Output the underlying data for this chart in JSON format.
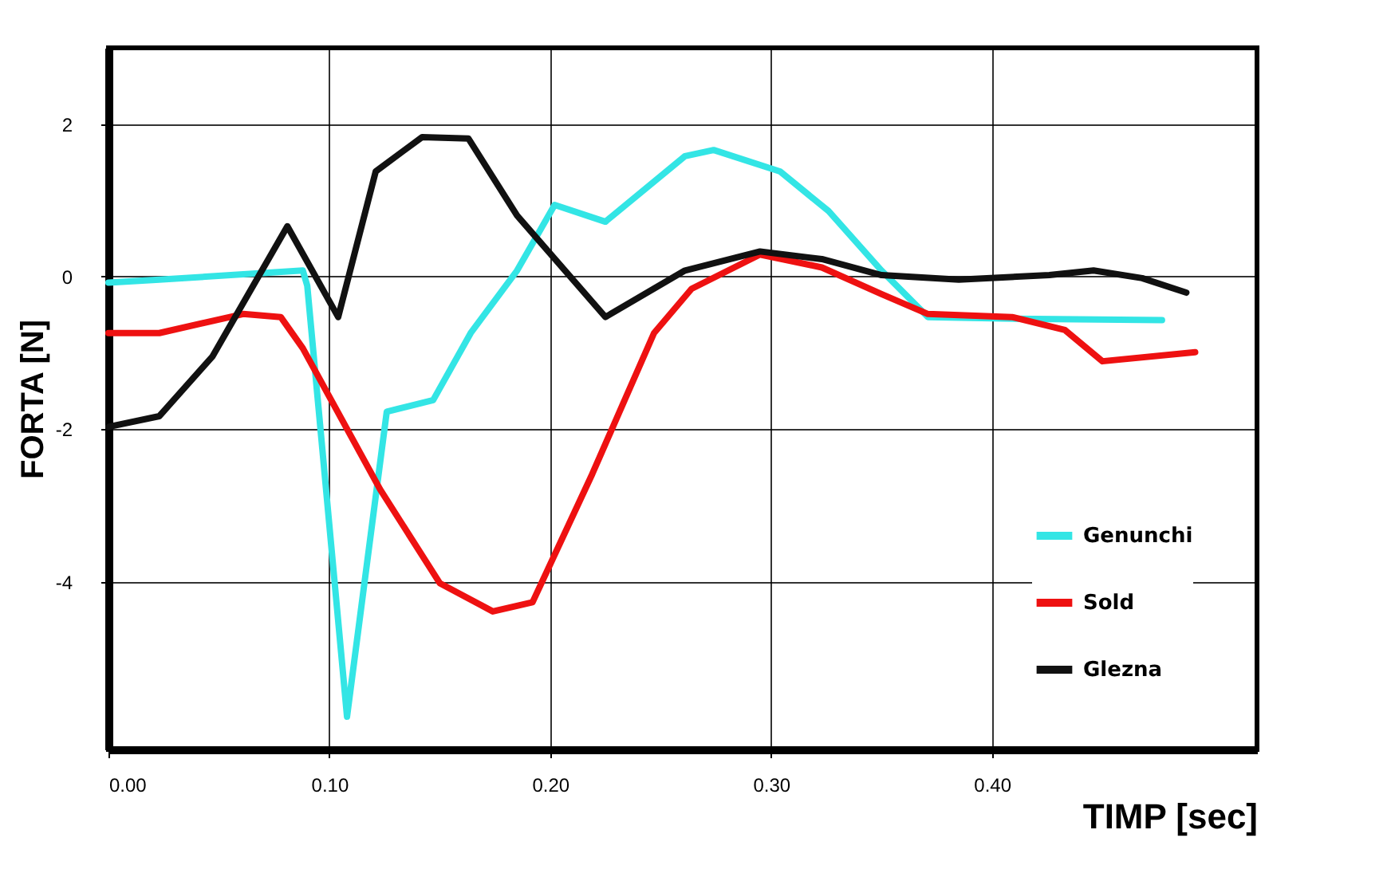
{
  "chart_data": {
    "type": "line",
    "xlabel": "TIMP [sec]",
    "ylabel": "FORTA [N]",
    "xlim": [
      0,
      0.52
    ],
    "ylim": [
      -6.2,
      3
    ],
    "xticks": [
      {
        "value": 0,
        "label": "0.00"
      },
      {
        "value": 0.1,
        "label": "0.10"
      },
      {
        "value": 0.2,
        "label": "0.20"
      },
      {
        "value": 0.3,
        "label": "0.30"
      },
      {
        "value": 0.4,
        "label": "0.40"
      }
    ],
    "yticks": [
      -4,
      -2,
      0,
      2
    ],
    "grid": true,
    "legend": "bottom right",
    "marker": "none",
    "line_style": "solid",
    "series": [
      {
        "name": "Genunchi",
        "color": "#33e5e5",
        "x": [
          0,
          0.023,
          0.088,
          0.09,
          0.108,
          0.126,
          0.147,
          0.164,
          0.185,
          0.202,
          0.225,
          0.261,
          0.274,
          0.304,
          0.326,
          0.35,
          0.371,
          0.405,
          0.477
        ],
        "values": [
          -0.08,
          -0.04,
          0.08,
          -0.12,
          -5.77,
          -1.77,
          -1.62,
          -0.74,
          0.08,
          0.94,
          0.72,
          1.58,
          1.66,
          1.38,
          0.86,
          0.08,
          -0.53,
          -0.55,
          -0.57
        ]
      },
      {
        "name": "Sold",
        "color": "#ee1111",
        "x": [
          0,
          0.023,
          0.061,
          0.078,
          0.088,
          0.123,
          0.15,
          0.174,
          0.192,
          0.219,
          0.247,
          0.264,
          0.295,
          0.323,
          0.35,
          0.371,
          0.409,
          0.433,
          0.45,
          0.492
        ],
        "values": [
          -0.74,
          -0.74,
          -0.49,
          -0.53,
          -0.94,
          -2.79,
          -4.02,
          -4.39,
          -4.27,
          -2.59,
          -0.74,
          -0.16,
          0.29,
          0.12,
          -0.23,
          -0.49,
          -0.53,
          -0.7,
          -1.11,
          -0.99
        ]
      },
      {
        "name": "Glezna",
        "color": "#111111",
        "x": [
          0,
          0.023,
          0.047,
          0.081,
          0.104,
          0.121,
          0.142,
          0.163,
          0.185,
          0.225,
          0.261,
          0.295,
          0.323,
          0.35,
          0.385,
          0.426,
          0.446,
          0.468,
          0.488
        ],
        "values": [
          -1.97,
          -1.83,
          -1.05,
          0.66,
          -0.53,
          1.38,
          1.83,
          1.81,
          0.8,
          -0.53,
          0.08,
          0.33,
          0.23,
          0.02,
          -0.04,
          0.02,
          0.08,
          -0.02,
          -0.21
        ]
      }
    ]
  }
}
